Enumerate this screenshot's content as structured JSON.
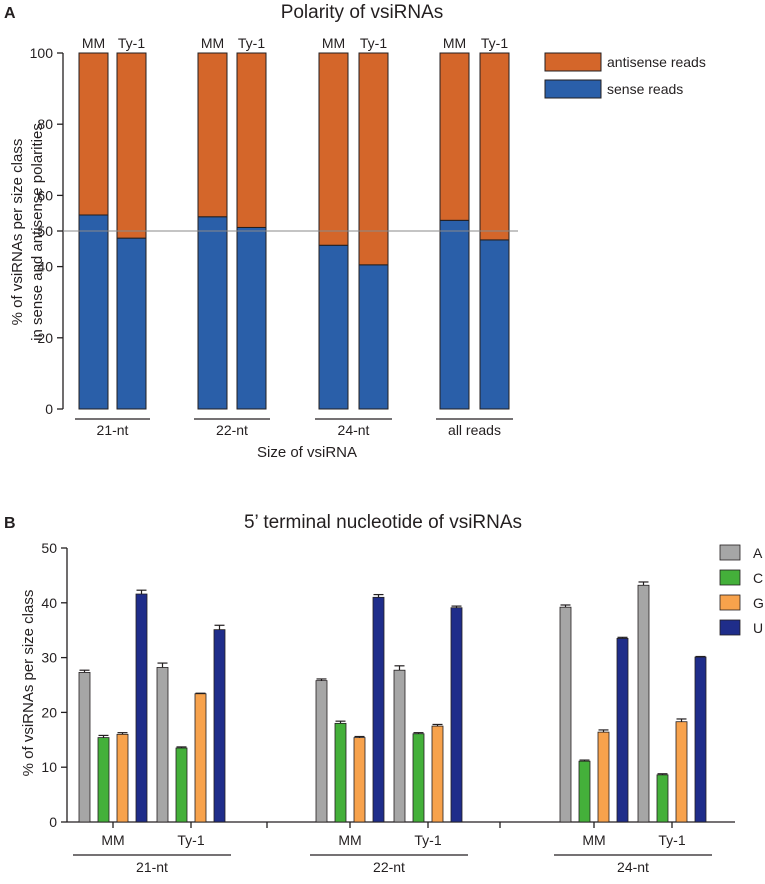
{
  "chart_data": [
    {
      "type": "bar",
      "panel_label": "A",
      "title": "Polarity of vsiRNAs",
      "ylabel_lines": [
        "% of vsiRNAs per size class",
        "in sense and antisense polarities"
      ],
      "xlabel": "Size of vsiRNA",
      "ylim": [
        0,
        100
      ],
      "yticks": [
        0,
        20,
        40,
        50,
        60,
        80,
        100
      ],
      "reference_line": 50,
      "stacked": true,
      "groups": [
        "21-nt",
        "22-nt",
        "24-nt",
        "all reads"
      ],
      "bar_labels": [
        "MM",
        "Ty-1"
      ],
      "series": [
        {
          "name": "sense reads",
          "color": "#2a5fa9",
          "values": [
            [
              54.5,
              48
            ],
            [
              54,
              51
            ],
            [
              46,
              40.5
            ],
            [
              53,
              47.5
            ]
          ]
        },
        {
          "name": "antisense reads",
          "color": "#d4662a",
          "values": [
            [
              45.5,
              52
            ],
            [
              46,
              49
            ],
            [
              54,
              59.5
            ],
            [
              47,
              52.5
            ]
          ]
        }
      ],
      "legend": [
        "antisense reads",
        "sense reads"
      ],
      "legend_position": "top-right"
    },
    {
      "type": "bar",
      "panel_label": "B",
      "title": "5’ terminal nucleotide of vsiRNAs",
      "ylabel": "% of vsiRNAs per size class",
      "xlabel": "",
      "ylim": [
        0,
        50
      ],
      "yticks": [
        0,
        10,
        20,
        30,
        40,
        50
      ],
      "groups": [
        "21-nt",
        "22-nt",
        "24-nt"
      ],
      "subgroups": [
        "MM",
        "Ty-1"
      ],
      "error_bars": true,
      "series": [
        {
          "name": "A",
          "color": "#a6a6a6",
          "values": [
            [
              27.3,
              28.2
            ],
            [
              25.8,
              27.7
            ],
            [
              39.2,
              43.2
            ]
          ],
          "errors": [
            [
              0.4,
              0.8
            ],
            [
              0.3,
              0.8
            ],
            [
              0.4,
              0.6
            ]
          ]
        },
        {
          "name": "C",
          "color": "#44b03a",
          "values": [
            [
              15.4,
              13.5
            ],
            [
              18.0,
              16.1
            ],
            [
              11.1,
              8.6
            ]
          ],
          "errors": [
            [
              0.4,
              0.2
            ],
            [
              0.4,
              0.2
            ],
            [
              0.2,
              0.2
            ]
          ]
        },
        {
          "name": "G",
          "color": "#f7a24c",
          "values": [
            [
              16.0,
              23.4
            ],
            [
              15.4,
              17.5
            ],
            [
              16.4,
              18.3
            ]
          ],
          "errors": [
            [
              0.3,
              0.1
            ],
            [
              0.2,
              0.3
            ],
            [
              0.4,
              0.5
            ]
          ]
        },
        {
          "name": "U",
          "color": "#1f2d8a",
          "values": [
            [
              41.6,
              35.1
            ],
            [
              41.0,
              39.1
            ],
            [
              33.5,
              30.1
            ]
          ],
          "errors": [
            [
              0.7,
              0.8
            ],
            [
              0.5,
              0.3
            ],
            [
              0.2,
              0.1
            ]
          ]
        }
      ],
      "legend_position": "top-right"
    }
  ]
}
